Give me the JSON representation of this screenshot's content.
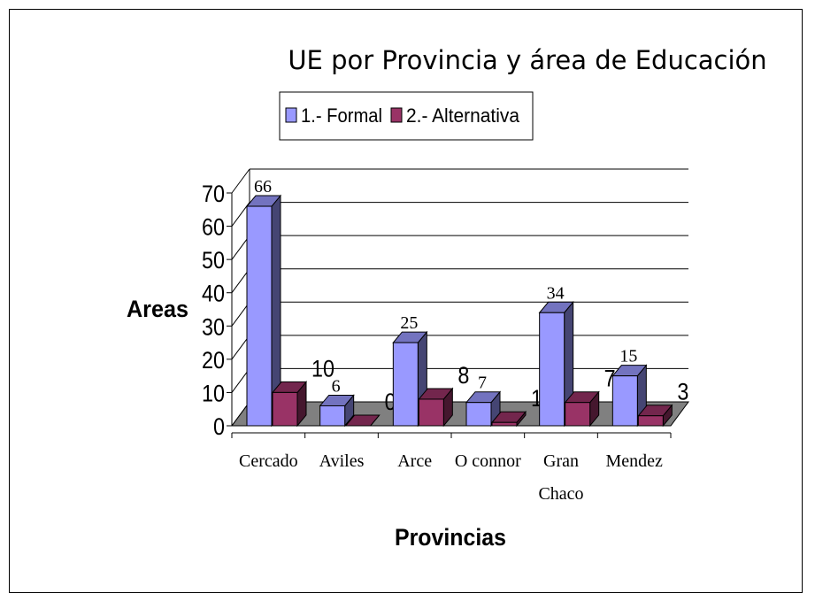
{
  "chart_data": {
    "type": "bar",
    "title": "UE por Provincia y área de Educación",
    "xlabel": "Provincias",
    "ylabel": "Areas",
    "categories": [
      "Cercado",
      "Aviles",
      "Arce",
      "O connor",
      "Gran Chaco",
      "Mendez"
    ],
    "series": [
      {
        "name": "1.- Formal",
        "values": [
          66,
          6,
          25,
          7,
          34,
          15
        ],
        "color": "#9999FF"
      },
      {
        "name": "2.- Alternativa",
        "values": [
          10,
          0,
          8,
          1,
          7,
          3
        ],
        "color": "#993366"
      }
    ],
    "ylim": [
      0,
      70
    ],
    "yticks": [
      0,
      10,
      20,
      30,
      40,
      50,
      60,
      70
    ],
    "grid": true,
    "legend": "top",
    "floor_color": "#808080"
  }
}
